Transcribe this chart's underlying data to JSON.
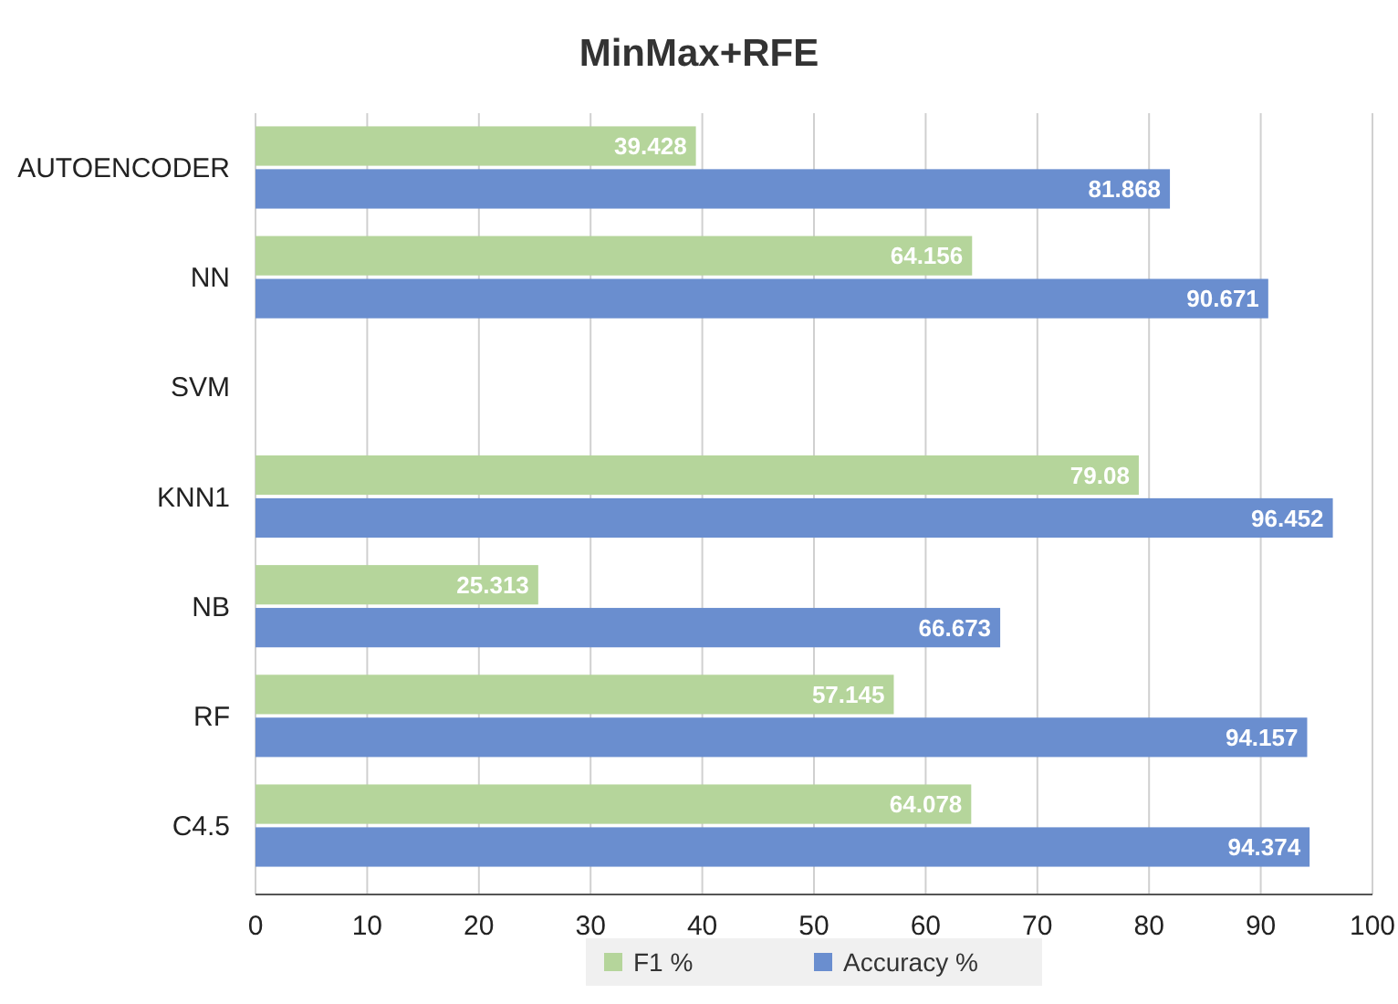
{
  "chart_data": {
    "type": "bar",
    "orientation": "horizontal",
    "title": "MinMax+RFE",
    "categories": [
      "AUTOENCODER",
      "NN",
      "SVM",
      "KNN1",
      "NB",
      "RF",
      "C4.5"
    ],
    "series": [
      {
        "name": "F1 %",
        "color": "#b5d59b",
        "values": [
          39.428,
          64.156,
          null,
          79.08,
          25.313,
          57.145,
          64.078
        ]
      },
      {
        "name": "Accuracy %",
        "color": "#6a8ecf",
        "values": [
          81.868,
          90.671,
          null,
          96.452,
          66.673,
          94.157,
          94.374
        ]
      }
    ],
    "xlim": [
      0,
      100
    ],
    "xticks": [
      0,
      10,
      20,
      30,
      40,
      50,
      60,
      70,
      80,
      90,
      100
    ],
    "grid": "x",
    "legend": "bottom",
    "data_labels": true
  }
}
